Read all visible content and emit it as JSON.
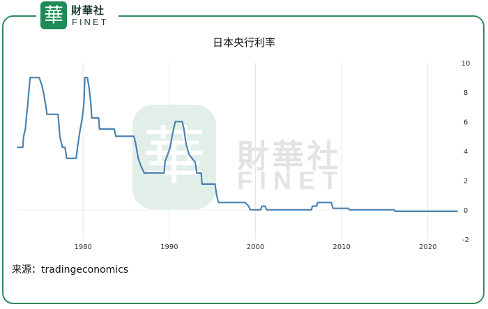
{
  "brand": {
    "logo_char": "華",
    "name_cn": "財華社",
    "name_en": "FINET",
    "accent_color": "#1e8a55"
  },
  "title": "日本央行利率",
  "source": "来源：tradingeconomics",
  "chart_data": {
    "type": "line",
    "title": "日本央行利率",
    "xlabel": "",
    "ylabel": "",
    "xlim": [
      1972.3,
      2023.5
    ],
    "ylim": [
      -2,
      10
    ],
    "x_ticks": [
      1980,
      1990,
      2000,
      2010,
      2020
    ],
    "y_ticks": [
      -2,
      0,
      2,
      4,
      6,
      8,
      10
    ],
    "grid": "vertical",
    "line_color": "#4a82b0",
    "series": [
      {
        "name": "",
        "points": [
          [
            1972.4,
            4.25
          ],
          [
            1973.0,
            4.25
          ],
          [
            1973.1,
            5.0
          ],
          [
            1973.3,
            5.5
          ],
          [
            1973.45,
            6.5
          ],
          [
            1973.55,
            7.0
          ],
          [
            1973.7,
            8.0
          ],
          [
            1973.85,
            9.0
          ],
          [
            1974.9,
            9.0
          ],
          [
            1975.2,
            8.5
          ],
          [
            1975.4,
            8.0
          ],
          [
            1975.55,
            7.5
          ],
          [
            1975.7,
            7.0
          ],
          [
            1975.8,
            6.5
          ],
          [
            1977.1,
            6.5
          ],
          [
            1977.2,
            5.75
          ],
          [
            1977.3,
            5.0
          ],
          [
            1977.6,
            4.25
          ],
          [
            1977.9,
            4.25
          ],
          [
            1978.1,
            3.5
          ],
          [
            1979.2,
            3.5
          ],
          [
            1979.35,
            4.25
          ],
          [
            1979.6,
            5.25
          ],
          [
            1979.9,
            6.25
          ],
          [
            1980.1,
            7.25
          ],
          [
            1980.2,
            9.0
          ],
          [
            1980.5,
            9.0
          ],
          [
            1980.7,
            8.25
          ],
          [
            1980.9,
            7.25
          ],
          [
            1981.0,
            6.25
          ],
          [
            1981.8,
            6.25
          ],
          [
            1981.9,
            5.5
          ],
          [
            1983.6,
            5.5
          ],
          [
            1983.8,
            5.0
          ],
          [
            1985.9,
            5.0
          ],
          [
            1986.1,
            4.5
          ],
          [
            1986.25,
            4.0
          ],
          [
            1986.4,
            3.5
          ],
          [
            1986.7,
            3.0
          ],
          [
            1987.1,
            2.5
          ],
          [
            1989.4,
            2.5
          ],
          [
            1989.5,
            3.25
          ],
          [
            1989.8,
            3.75
          ],
          [
            1990.1,
            4.25
          ],
          [
            1990.4,
            5.25
          ],
          [
            1990.7,
            6.0
          ],
          [
            1991.5,
            6.0
          ],
          [
            1991.7,
            5.5
          ],
          [
            1991.95,
            4.5
          ],
          [
            1992.3,
            3.75
          ],
          [
            1993.0,
            3.25
          ],
          [
            1993.2,
            2.5
          ],
          [
            1993.7,
            2.5
          ],
          [
            1993.8,
            1.75
          ],
          [
            1995.3,
            1.75
          ],
          [
            1995.5,
            1.0
          ],
          [
            1995.7,
            0.5
          ],
          [
            1998.8,
            0.5
          ],
          [
            1999.2,
            0.25
          ],
          [
            1999.4,
            0.0
          ],
          [
            2000.6,
            0.0
          ],
          [
            2000.75,
            0.25
          ],
          [
            2001.1,
            0.25
          ],
          [
            2001.3,
            0.0
          ],
          [
            2006.5,
            0.0
          ],
          [
            2006.6,
            0.25
          ],
          [
            2007.1,
            0.25
          ],
          [
            2007.2,
            0.5
          ],
          [
            2008.8,
            0.5
          ],
          [
            2008.9,
            0.3
          ],
          [
            2009.0,
            0.1
          ],
          [
            2010.8,
            0.1
          ],
          [
            2010.9,
            0.0
          ],
          [
            2016.1,
            0.0
          ],
          [
            2016.2,
            -0.1
          ],
          [
            2023.4,
            -0.1
          ]
        ]
      }
    ]
  }
}
